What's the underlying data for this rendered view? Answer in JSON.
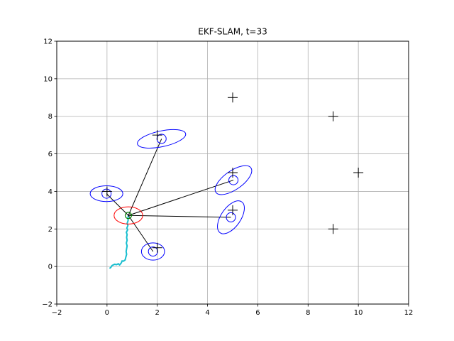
{
  "chart_data": {
    "type": "scatter",
    "title": "EKF-SLAM, t=33",
    "xlabel": "",
    "ylabel": "",
    "xlim": [
      -2,
      12
    ],
    "ylim": [
      -2,
      12
    ],
    "xticks": [
      -2,
      0,
      2,
      4,
      6,
      8,
      10,
      12
    ],
    "yticks": [
      -2,
      0,
      2,
      4,
      6,
      8,
      10,
      12
    ],
    "xtick_labels": [
      "−2",
      "0",
      "2",
      "4",
      "6",
      "8",
      "10",
      "12"
    ],
    "ytick_labels": [
      "−2",
      "0",
      "2",
      "4",
      "6",
      "8",
      "10",
      "12"
    ],
    "grid": true,
    "colors": {
      "landmark_true": "#000000",
      "landmark_estimate": "#0000ff",
      "robot_covariance": "#ff0000",
      "robot": "#008000",
      "trajectory": "#17becf",
      "observation_line": "#000000",
      "grid": "#b0b0b0"
    },
    "true_landmarks": [
      {
        "x": 0,
        "y": 4
      },
      {
        "x": 2,
        "y": 7
      },
      {
        "x": 2,
        "y": 1
      },
      {
        "x": 5,
        "y": 5
      },
      {
        "x": 5,
        "y": 3
      },
      {
        "x": 5,
        "y": 9
      },
      {
        "x": 9,
        "y": 8
      },
      {
        "x": 10,
        "y": 5
      },
      {
        "x": 9,
        "y": 2
      }
    ],
    "estimated_landmarks": [
      {
        "x": -0.02,
        "y": 3.88,
        "cov_rx": 0.65,
        "cov_ry": 0.42,
        "angle_deg": 0
      },
      {
        "x": 2.17,
        "y": 6.8,
        "cov_rx": 0.98,
        "cov_ry": 0.42,
        "angle_deg": -12
      },
      {
        "x": 1.83,
        "y": 0.8,
        "cov_rx": 0.46,
        "cov_ry": 0.46,
        "angle_deg": 0
      },
      {
        "x": 5.03,
        "y": 4.6,
        "cov_rx": 0.85,
        "cov_ry": 0.5,
        "angle_deg": -35
      },
      {
        "x": 4.93,
        "y": 2.62,
        "cov_rx": 0.75,
        "cov_ry": 0.52,
        "angle_deg": -55
      }
    ],
    "robot_pose": {
      "x": 0.85,
      "y": 2.72,
      "cov_rx": 0.57,
      "cov_ry": 0.46
    },
    "observed_landmark_indices": [
      0,
      1,
      2,
      3,
      4
    ],
    "trajectory": [
      [
        0.1,
        -0.1
      ],
      [
        0.15,
        -0.05
      ],
      [
        0.2,
        0.05
      ],
      [
        0.3,
        0.12
      ],
      [
        0.38,
        0.1
      ],
      [
        0.45,
        0.15
      ],
      [
        0.5,
        0.08
      ],
      [
        0.57,
        0.2
      ],
      [
        0.6,
        0.3
      ],
      [
        0.65,
        0.28
      ],
      [
        0.72,
        0.35
      ],
      [
        0.75,
        0.5
      ],
      [
        0.78,
        0.65
      ],
      [
        0.76,
        0.8
      ],
      [
        0.78,
        0.95
      ],
      [
        0.8,
        1.1
      ],
      [
        0.77,
        1.25
      ],
      [
        0.8,
        1.4
      ],
      [
        0.78,
        1.55
      ],
      [
        0.8,
        1.7
      ],
      [
        0.77,
        1.82
      ],
      [
        0.82,
        1.95
      ],
      [
        0.79,
        2.05
      ],
      [
        0.83,
        2.18
      ],
      [
        0.8,
        2.3
      ],
      [
        0.84,
        2.45
      ],
      [
        0.83,
        2.58
      ],
      [
        0.85,
        2.72
      ]
    ]
  }
}
